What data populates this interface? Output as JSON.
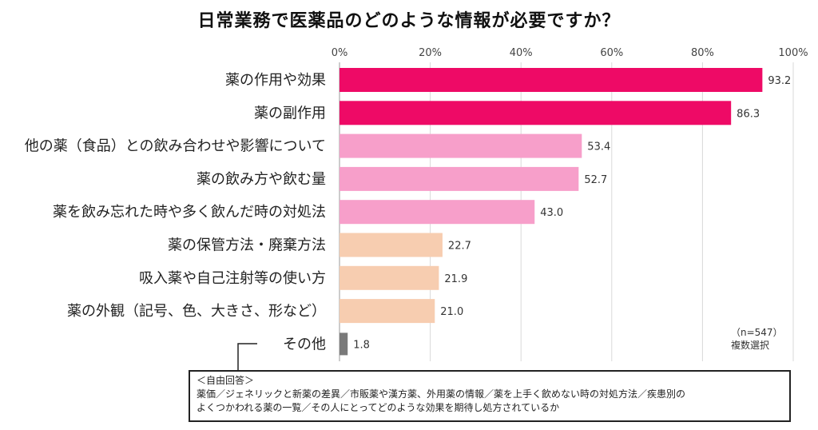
{
  "chart_data": {
    "type": "bar",
    "orientation": "horizontal",
    "title": "日常業務で医薬品のどのような情報が必要ですか？",
    "categories": [
      "薬の作用や効果",
      "薬の副作用",
      "他の薬（食品）との飲み合わせや影響について",
      "薬の飲み方や飲む量",
      "薬を飲み忘れた時や多く飲んだ時の対処法",
      "薬の保管方法・廃棄方法",
      "吸入薬や自己注射等の使い方",
      "薬の外観（記号、色、大きさ、形など）",
      "その他"
    ],
    "values": [
      93.2,
      86.3,
      53.4,
      52.7,
      43.0,
      22.7,
      21.9,
      21.0,
      1.8
    ],
    "value_labels": [
      "93.2",
      "86.3",
      "53.4",
      "52.7",
      "43.0",
      "22.7",
      "21.9",
      "21.0",
      "1.8"
    ],
    "colors": [
      "#ee0a66",
      "#ee0a66",
      "#f79fca",
      "#f79fca",
      "#f79fca",
      "#f7cdb0",
      "#f7cdb0",
      "#f7cdb0",
      "#7a7a7a"
    ],
    "xlim": [
      0,
      100
    ],
    "xticks": [
      0,
      20,
      40,
      60,
      80,
      100
    ],
    "xtick_labels": [
      "0%",
      "20%",
      "40%",
      "60%",
      "80%",
      "100%"
    ],
    "grid": true
  },
  "note": {
    "sample": "（n=547）",
    "method": "複数選択"
  },
  "free_answer": {
    "heading": "＜自由回答＞",
    "line1": "薬価／ジェネリックと新薬の差異／市販薬や漢方薬、外用薬の情報／薬を上手く飲めない時の対処方法／疾患別の",
    "line2": "よくつかわれる薬の一覧／その人にとってどのような効果を期待し処方されているか"
  }
}
